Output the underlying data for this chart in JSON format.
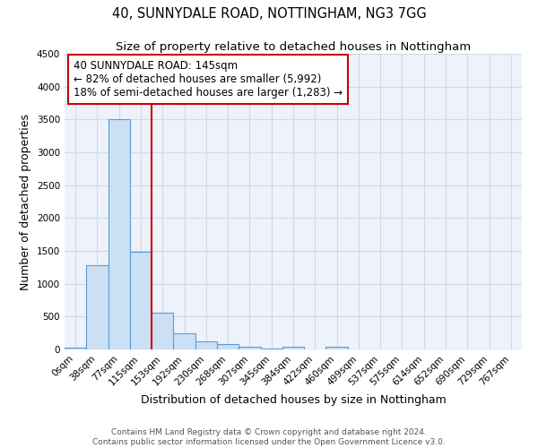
{
  "title": "40, SUNNYDALE ROAD, NOTTINGHAM, NG3 7GG",
  "subtitle": "Size of property relative to detached houses in Nottingham",
  "xlabel": "Distribution of detached houses by size in Nottingham",
  "ylabel": "Number of detached properties",
  "bar_labels": [
    "0sqm",
    "38sqm",
    "77sqm",
    "115sqm",
    "153sqm",
    "192sqm",
    "230sqm",
    "268sqm",
    "307sqm",
    "345sqm",
    "384sqm",
    "422sqm",
    "460sqm",
    "499sqm",
    "537sqm",
    "575sqm",
    "614sqm",
    "652sqm",
    "690sqm",
    "729sqm",
    "767sqm"
  ],
  "bar_values": [
    30,
    1280,
    3500,
    1480,
    560,
    245,
    125,
    80,
    40,
    15,
    40,
    5,
    40,
    0,
    0,
    0,
    0,
    0,
    0,
    0,
    0
  ],
  "bar_color": "#cce0f5",
  "bar_edge_color": "#5b9bd5",
  "vline_x_index": 4,
  "vline_color": "#cc0000",
  "annotation_title": "40 SUNNYDALE ROAD: 145sqm",
  "annotation_line1": "← 82% of detached houses are smaller (5,992)",
  "annotation_line2": "18% of semi-detached houses are larger (1,283) →",
  "annotation_box_color": "#cc0000",
  "annotation_bg": "#ffffff",
  "ylim": [
    0,
    4500
  ],
  "yticks": [
    0,
    500,
    1000,
    1500,
    2000,
    2500,
    3000,
    3500,
    4000,
    4500
  ],
  "grid_color": "#d0d8e8",
  "bg_color": "#eef2fb",
  "footer_line1": "Contains HM Land Registry data © Crown copyright and database right 2024.",
  "footer_line2": "Contains public sector information licensed under the Open Government Licence v3.0.",
  "title_fontsize": 10.5,
  "subtitle_fontsize": 9.5,
  "axis_label_fontsize": 9,
  "tick_fontsize": 7.5,
  "annotation_fontsize": 8.5,
  "footer_fontsize": 6.5
}
